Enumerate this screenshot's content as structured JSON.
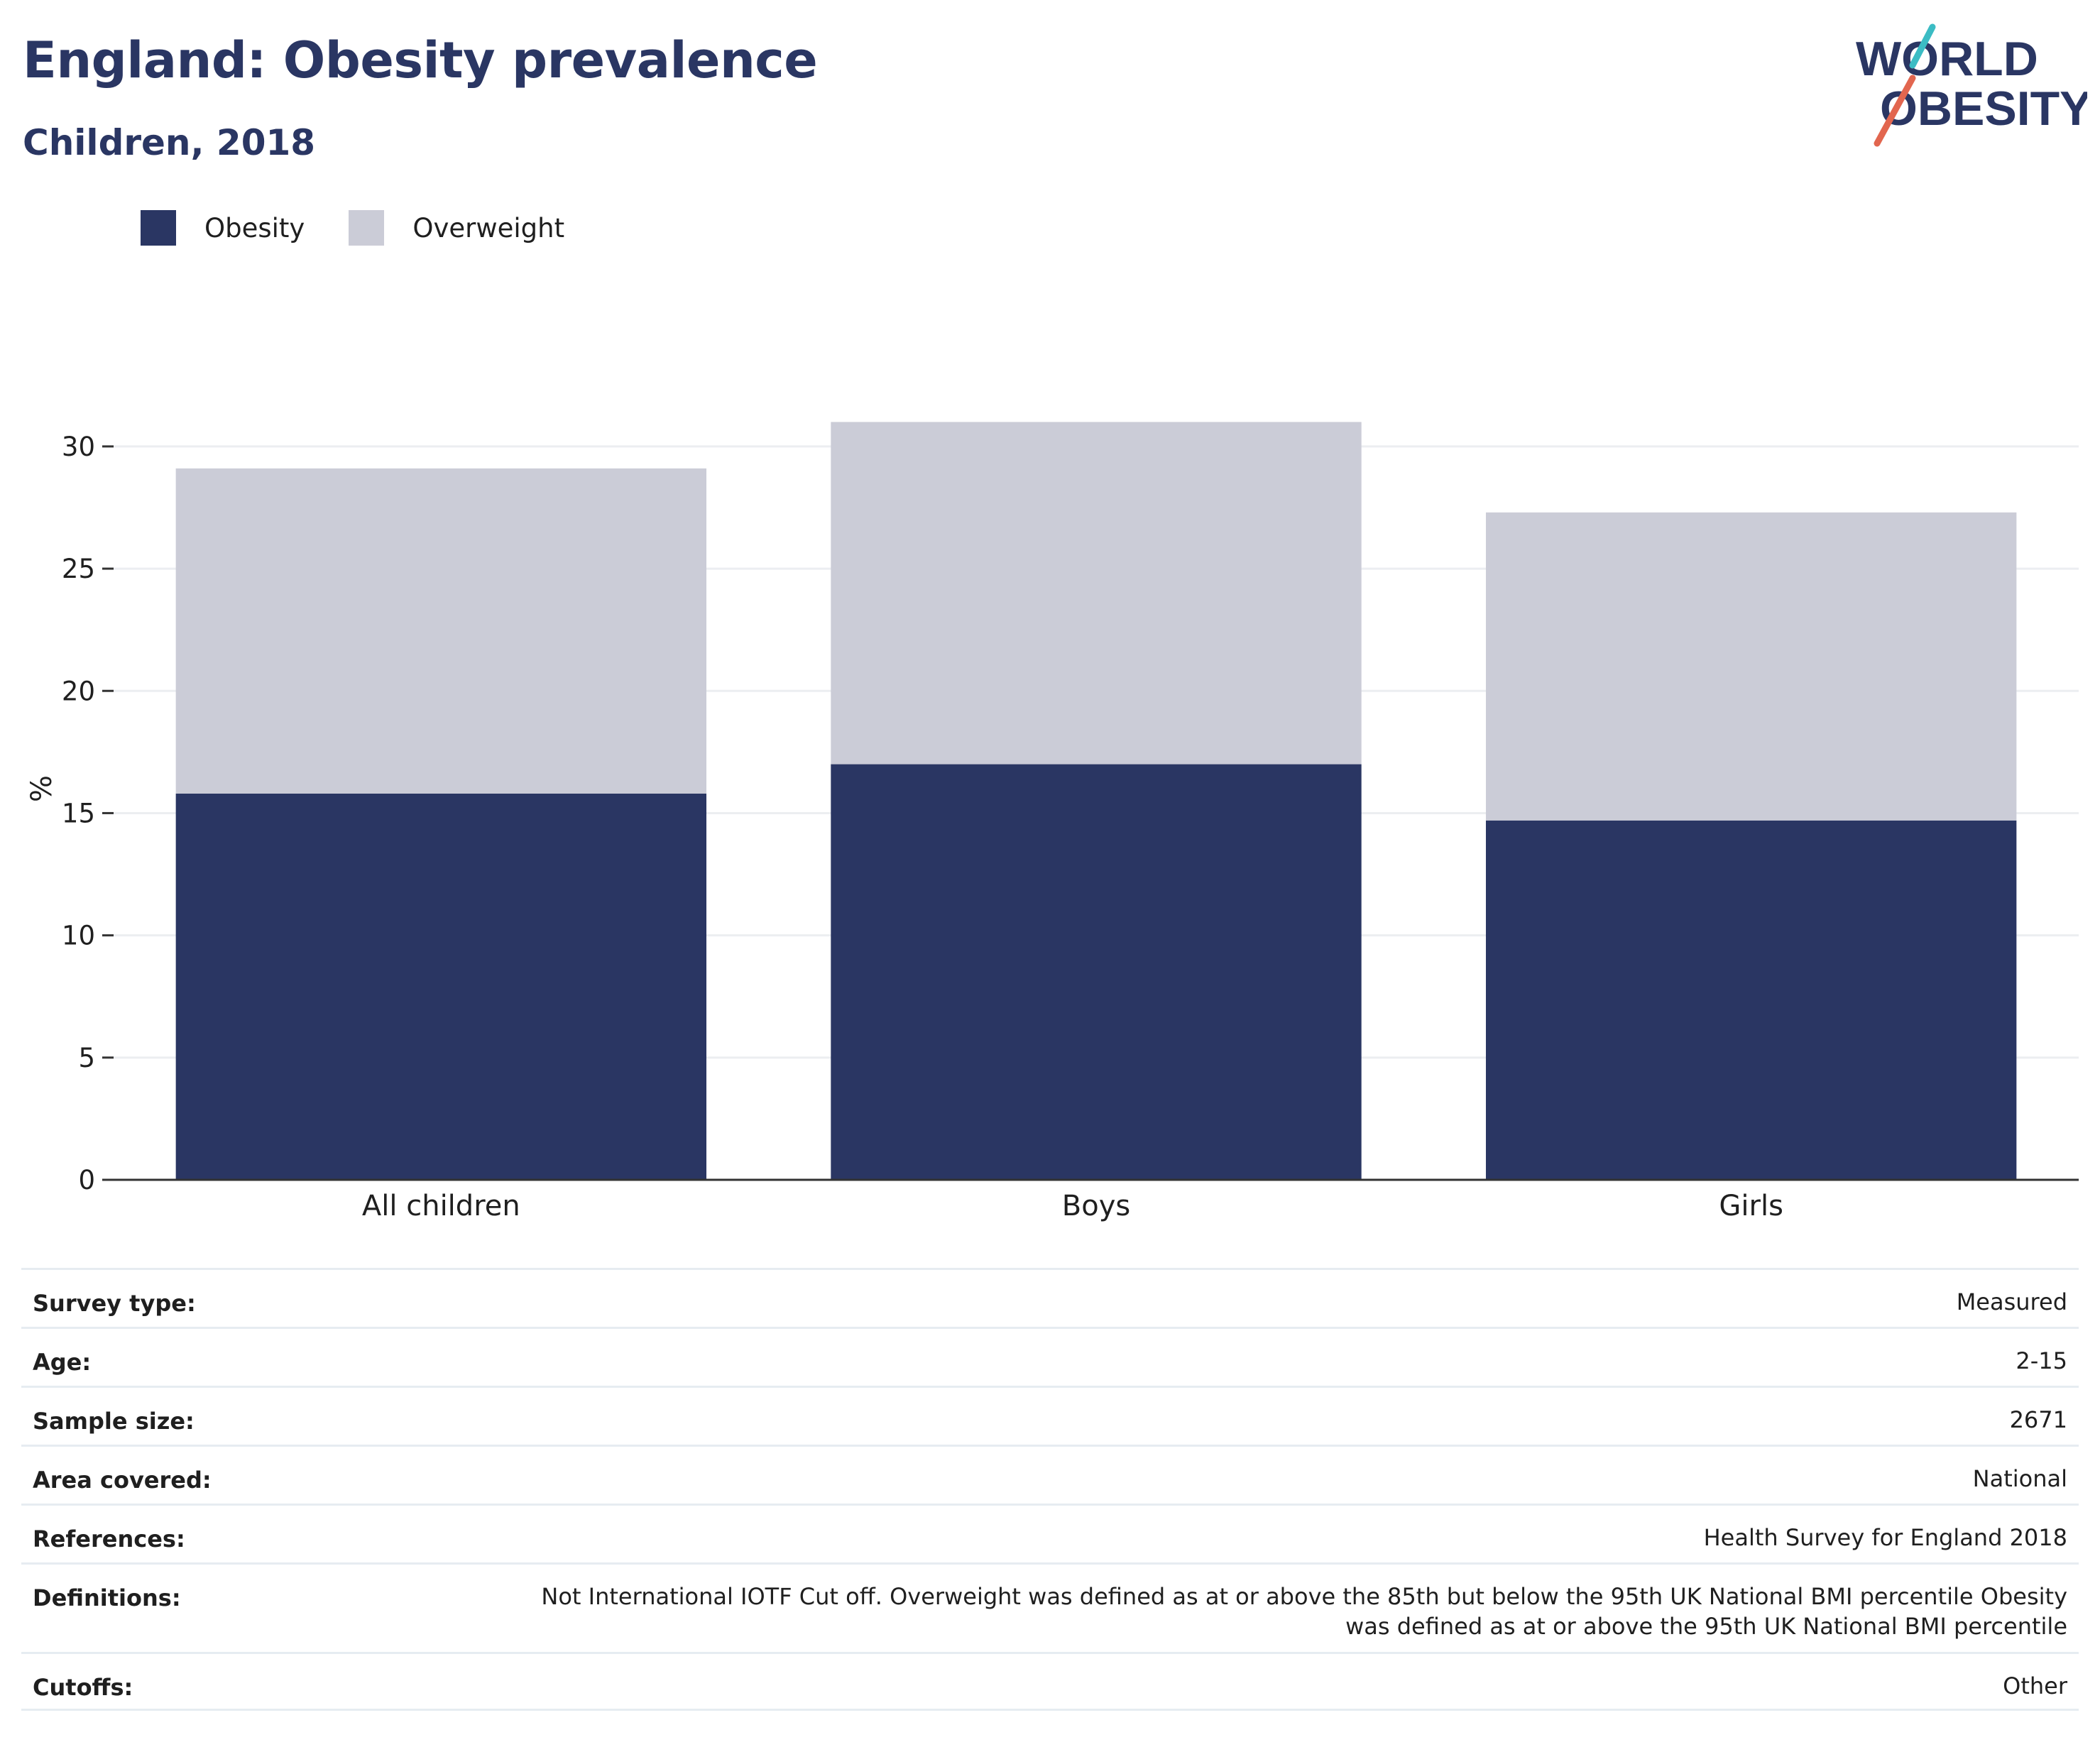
{
  "header": {
    "title": "England: Obesity prevalence",
    "subtitle": "Children, 2018"
  },
  "logo": {
    "line1": "WORLD",
    "line2": "OBESITY",
    "accent_teal": "#3bbcc4",
    "accent_coral": "#e2664f"
  },
  "legend": [
    {
      "label": "Obesity",
      "color": "#2a3663"
    },
    {
      "label": "Overweight",
      "color": "#cbccd7"
    }
  ],
  "chart_data": {
    "type": "bar",
    "stacked": true,
    "categories": [
      "All children",
      "Boys",
      "Girls"
    ],
    "series": [
      {
        "name": "Obesity",
        "color": "#2a3663",
        "values": [
          15.8,
          17.0,
          14.7
        ]
      },
      {
        "name": "Overweight",
        "color": "#cbccd7",
        "values": [
          13.3,
          14.0,
          12.6
        ]
      }
    ],
    "ylabel": "%",
    "yticks": [
      0,
      5,
      10,
      15,
      20,
      25,
      30
    ],
    "ylim": [
      0,
      32
    ],
    "grid": true,
    "legend_position": "top-left"
  },
  "info": [
    {
      "label": "Survey type:",
      "value": "Measured"
    },
    {
      "label": "Age:",
      "value": "2-15"
    },
    {
      "label": "Sample size:",
      "value": "2671"
    },
    {
      "label": "Area covered:",
      "value": "National"
    },
    {
      "label": "References:",
      "value": "Health Survey for England 2018"
    },
    {
      "label": "Definitions:",
      "value": "Not International IOTF Cut off. Overweight was defined as at or above the 85th but below the 95th UK National BMI percentile Obesity was defined as at or above the 95th UK National BMI percentile"
    },
    {
      "label": "Cutoffs:",
      "value": "Other"
    }
  ]
}
